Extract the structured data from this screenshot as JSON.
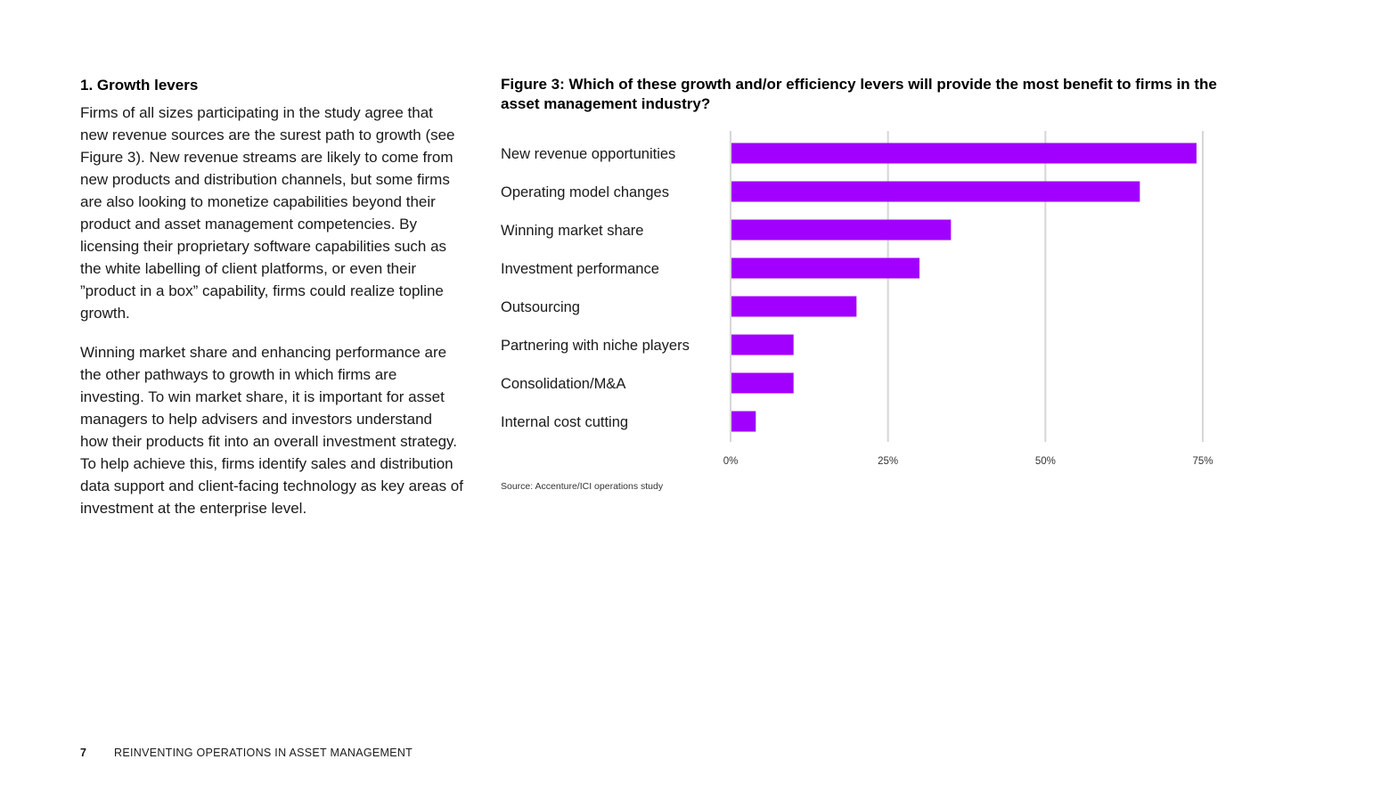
{
  "section": {
    "heading": "1. Growth levers",
    "paragraphs": [
      "Firms of all sizes participating in the study agree that new revenue sources are the surest path to growth (see Figure 3). New revenue streams are likely to come from new products and distribution channels, but some firms are also looking to monetize capabilities beyond their product and asset management competencies. By licensing their proprietary software capabilities such as the white labelling of client platforms, or even their ”product in a box” capability, firms could realize topline growth.",
      "Winning market share and enhancing performance are the other pathways to growth in which firms are investing. To win market share, it is important for asset managers to help advisers and investors understand how their products fit into an overall investment strategy. To help achieve this, firms identify sales and distribution data support and client-facing technology as key areas of investment at the enterprise level."
    ]
  },
  "figure": {
    "title": "Figure 3: Which of these growth and/or efficiency levers will provide the most benefit to firms in the asset management industry?",
    "source": "Source: Accenture/ICI operations study"
  },
  "chart_data": {
    "type": "bar",
    "orientation": "horizontal",
    "title": "Figure 3: Which of these growth and/or efficiency levers will provide the most benefit to firms in the asset management industry?",
    "categories": [
      "New revenue opportunities",
      "Operating model changes",
      "Winning market share",
      "Investment performance",
      "Outsourcing",
      "Partnering with niche players",
      "Consolidation/M&A",
      "Internal cost cutting"
    ],
    "values": [
      74,
      65,
      35,
      30,
      20,
      10,
      10,
      4
    ],
    "xlim": [
      0,
      75
    ],
    "xticks": [
      0,
      25,
      50,
      75
    ],
    "xtick_labels": [
      "0%",
      "25%",
      "50%",
      "75%"
    ],
    "xlabel": "",
    "ylabel": "",
    "grid": true,
    "bar_color": "#a100ff"
  },
  "footer": {
    "page_number": "7",
    "doc_title": "REINVENTING OPERATIONS IN ASSET MANAGEMENT"
  }
}
